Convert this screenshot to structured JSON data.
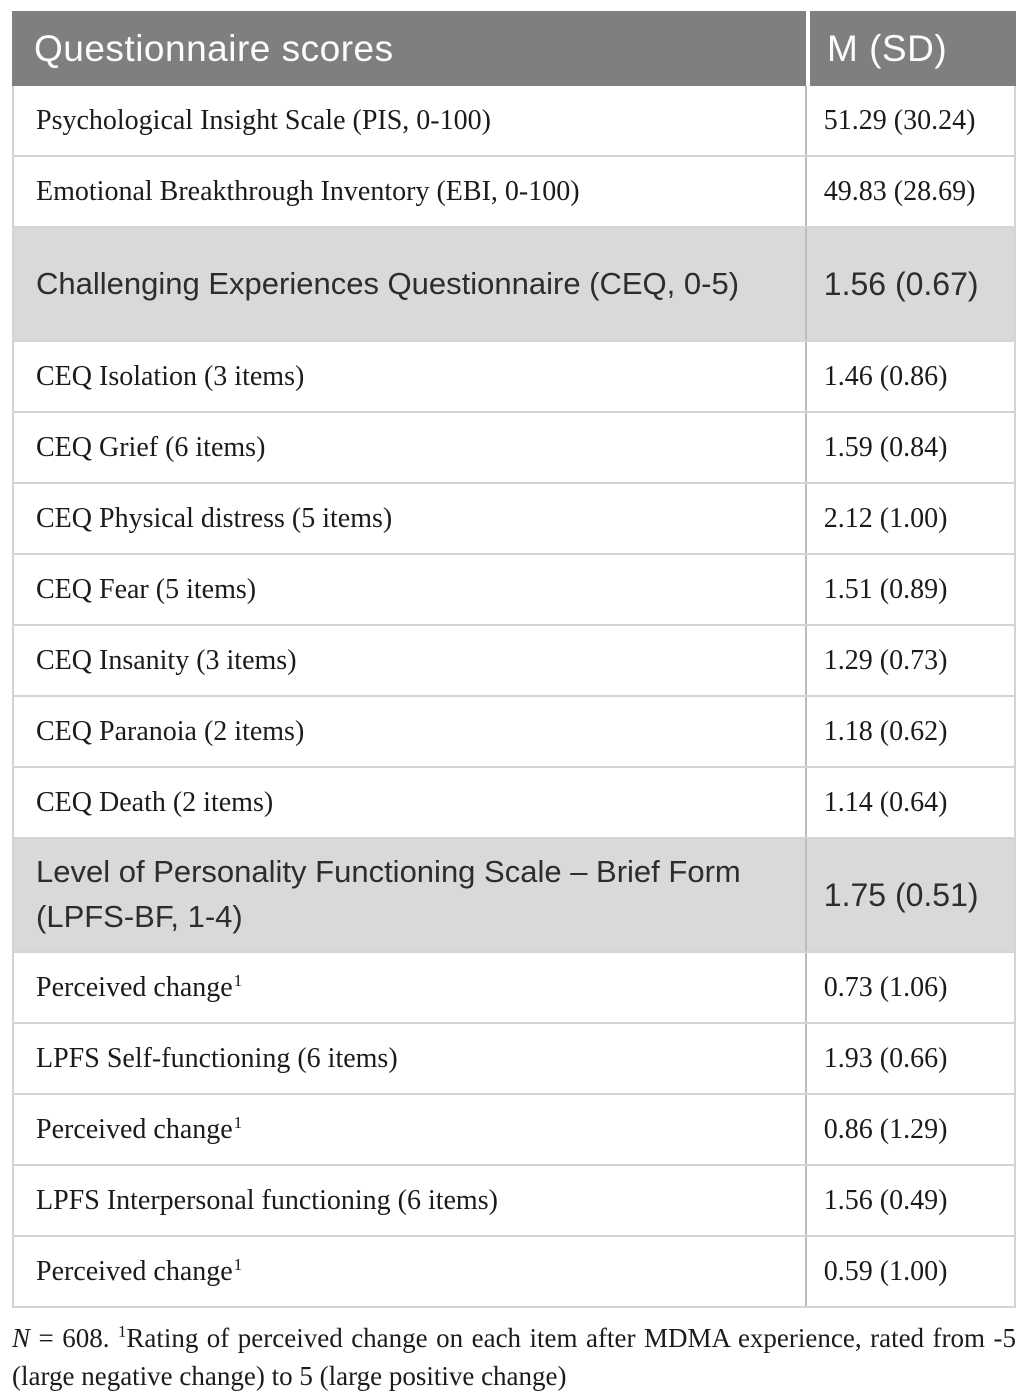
{
  "table": {
    "header": {
      "col1": "Questionnaire scores",
      "col2": "M (SD)"
    },
    "rows": [
      {
        "type": "item",
        "label": "Psychological Insight Scale (PIS, 0-100)",
        "value": "51.29 (30.24)"
      },
      {
        "type": "item",
        "label": "Emotional Breakthrough Inventory (EBI, 0-100)",
        "value": "49.83 (28.69)"
      },
      {
        "type": "section",
        "label": "Challenging Experiences Questionnaire (CEQ, 0-5)",
        "value": "1.56 (0.67)"
      },
      {
        "type": "item",
        "label": "CEQ Isolation (3 items)",
        "value": "1.46 (0.86)"
      },
      {
        "type": "item",
        "label": "CEQ Grief (6 items)",
        "value": "1.59 (0.84)"
      },
      {
        "type": "item",
        "label": "CEQ Physical distress (5 items)",
        "value": "2.12 (1.00)"
      },
      {
        "type": "item",
        "label": "CEQ Fear (5 items)",
        "value": "1.51 (0.89)"
      },
      {
        "type": "item",
        "label": "CEQ Insanity (3 items)",
        "value": "1.29 (0.73)"
      },
      {
        "type": "item",
        "label": "CEQ Paranoia (2 items)",
        "value": "1.18 (0.62)"
      },
      {
        "type": "item",
        "label": "CEQ Death (2 items)",
        "value": "1.14 (0.64)"
      },
      {
        "type": "section",
        "label": "Level of Personality Functioning Scale – Brief Form (LPFS-BF, 1-4)",
        "value": "1.75 (0.51)"
      },
      {
        "type": "item",
        "label": "Perceived change",
        "sup": "1",
        "value": "0.73 (1.06)"
      },
      {
        "type": "item",
        "label": "LPFS Self-functioning (6 items)",
        "value": "1.93 (0.66)"
      },
      {
        "type": "item",
        "label": "Perceived change",
        "sup": "1",
        "value": "0.86 (1.29)"
      },
      {
        "type": "item",
        "label": "LPFS Interpersonal functioning (6 items)",
        "value": "1.56 (0.49)"
      },
      {
        "type": "item",
        "label": "Perceived change",
        "sup": "1",
        "value": "0.59 (1.00)"
      }
    ]
  },
  "footnote": {
    "n": "N",
    "eq": " = 608. ",
    "sup": "1",
    "text": "Rating of perceived change on each item after MDMA experience, rated from -5 (large negative change) to 5 (large positive change)"
  },
  "colors": {
    "header_bg": "#7f7f7f",
    "header_text": "#fdfdfd",
    "section_bg": "#d9d9d9",
    "body_text": "#1b1b1b",
    "grid_line": "#d4d4d4",
    "column_divider": "#bcbcbc"
  }
}
